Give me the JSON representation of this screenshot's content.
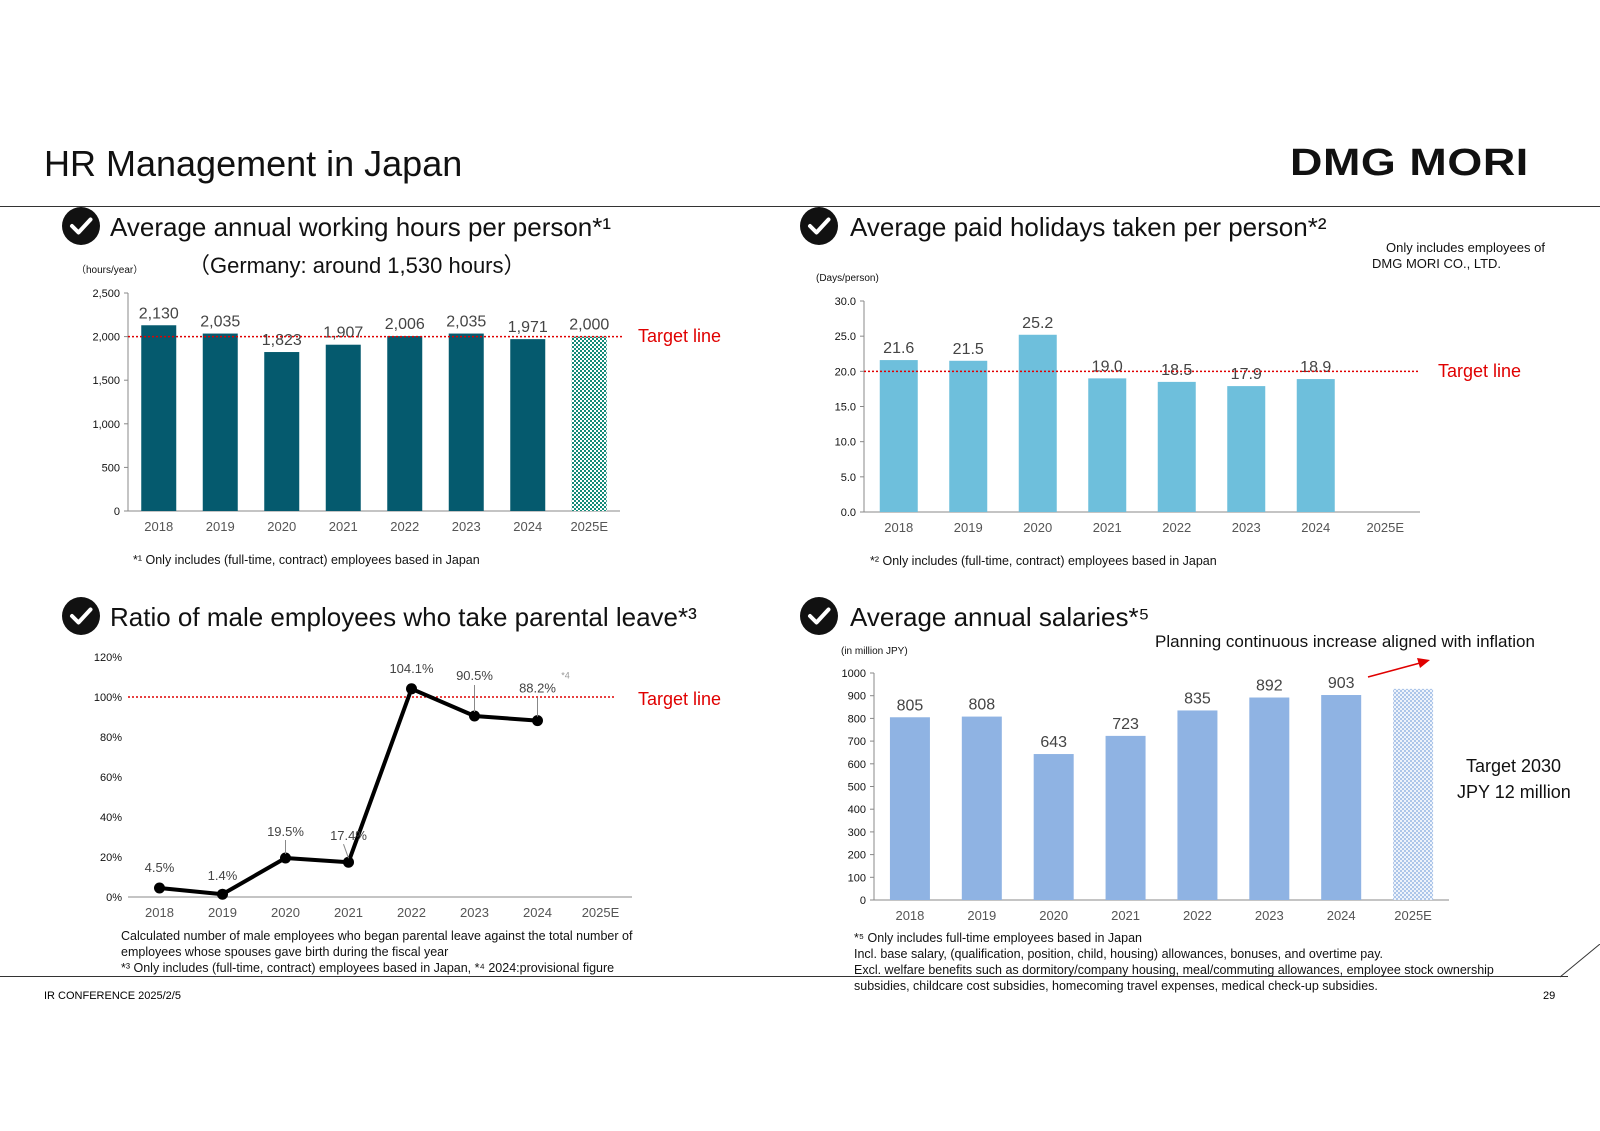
{
  "page_title": "HR Management in Japan",
  "brand": "DMG MORI",
  "footer": {
    "left": "IR CONFERENCE 2025/2/5",
    "page_number": "29"
  },
  "target_label": "Target line",
  "colors": {
    "teal": "#055a6e",
    "sky": "#6ebfdc",
    "periwinkle": "#8fb3e3",
    "target_red": "#e00000",
    "line_black": "#000000"
  },
  "panels": {
    "hours": {
      "title": "Average annual working hours per person*¹",
      "subtitle": "（Germany: around 1,530 hours）",
      "unit": "（hours/year）",
      "note": "*¹  Only includes (full-time, contract) employees based in Japan"
    },
    "holidays": {
      "title": "Average paid holidays taken per person*²",
      "unit": "(Days/person)",
      "side_note_1": "Only includes employees of",
      "side_note_2": "DMG MORI CO., LTD.",
      "note": "*² Only includes (full-time, contract) employees based in Japan"
    },
    "parental": {
      "title": "Ratio of male employees who take parental leave*³",
      "note_1": "Calculated number of male employees who began parental leave against the total number of",
      "note_2": "employees whose spouses gave birth during the fiscal year",
      "note_3": "*³ Only includes (full-time, contract) employees based in Japan, *⁴ 2024:provisional figure"
    },
    "salaries": {
      "title": "Average annual salaries*⁵",
      "unit": "(in million JPY)",
      "plan_note": "Planning continuous increase aligned with inflation",
      "target_1": "Target 2030",
      "target_2": "JPY 12 million",
      "note_1": "*⁵ Only includes full-time employees based in Japan",
      "note_2": "Incl. base salary, (qualification, position, child, housing) allowances, bonuses, and overtime pay.",
      "note_3": "Excl. welfare benefits such as dormitory/company housing, meal/commuting allowances, employee stock ownership",
      "note_4": "subsidies, childcare cost subsidies, homecoming travel expenses, medical check-up subsidies."
    }
  },
  "chart_data": [
    {
      "type": "bar",
      "categories": [
        "2018",
        "2019",
        "2020",
        "2021",
        "2022",
        "2023",
        "2024",
        "2025E"
      ],
      "values": [
        2130,
        2035,
        1823,
        1907,
        2006,
        2035,
        1971,
        2000
      ],
      "value_labels": [
        "2,130",
        "2,035",
        "1,823",
        "1,907",
        "2,006",
        "2,035",
        "1,971",
        "2,000"
      ],
      "yticks": [
        "0",
        "500",
        "1,000",
        "1,500",
        "2,000",
        "2,500"
      ],
      "ylim": [
        0,
        2500
      ],
      "target": 2000,
      "forecast_pattern": "2025E"
    },
    {
      "type": "bar",
      "categories": [
        "2018",
        "2019",
        "2020",
        "2021",
        "2022",
        "2023",
        "2024",
        "2025E"
      ],
      "values": [
        21.6,
        21.5,
        25.2,
        19.0,
        18.5,
        17.9,
        18.9,
        null
      ],
      "value_labels": [
        "21.6",
        "21.5",
        "25.2",
        "19.0",
        "18.5",
        "17.9",
        "18.9",
        ""
      ],
      "yticks": [
        "0.0",
        "5.0",
        "10.0",
        "15.0",
        "20.0",
        "25.0",
        "30.0"
      ],
      "ylim": [
        0,
        30
      ],
      "target": 20
    },
    {
      "type": "line",
      "categories": [
        "2018",
        "2019",
        "2020",
        "2021",
        "2022",
        "2023",
        "2024",
        "2025E"
      ],
      "values": [
        4.5,
        1.4,
        19.5,
        17.4,
        104.1,
        90.5,
        88.2,
        null
      ],
      "value_labels": [
        "4.5%",
        "1.4%",
        "19.5%",
        "17.4%",
        "104.1%",
        "90.5%",
        "88.2%",
        ""
      ],
      "annotation": "*4",
      "yticks": [
        "0%",
        "20%",
        "40%",
        "60%",
        "80%",
        "100%",
        "120%"
      ],
      "ylim": [
        0,
        120
      ],
      "target": 100
    },
    {
      "type": "bar",
      "categories": [
        "2018",
        "2019",
        "2020",
        "2021",
        "2022",
        "2023",
        "2024",
        "2025E"
      ],
      "values": [
        805,
        808,
        643,
        723,
        835,
        892,
        903,
        930
      ],
      "value_labels": [
        "805",
        "808",
        "643",
        "723",
        "835",
        "892",
        "903",
        ""
      ],
      "yticks": [
        "0",
        "100",
        "200",
        "300",
        "400",
        "500",
        "600",
        "700",
        "800",
        "900",
        "1000"
      ],
      "ylim": [
        0,
        1000
      ],
      "forecast_pattern": "2025E"
    }
  ]
}
